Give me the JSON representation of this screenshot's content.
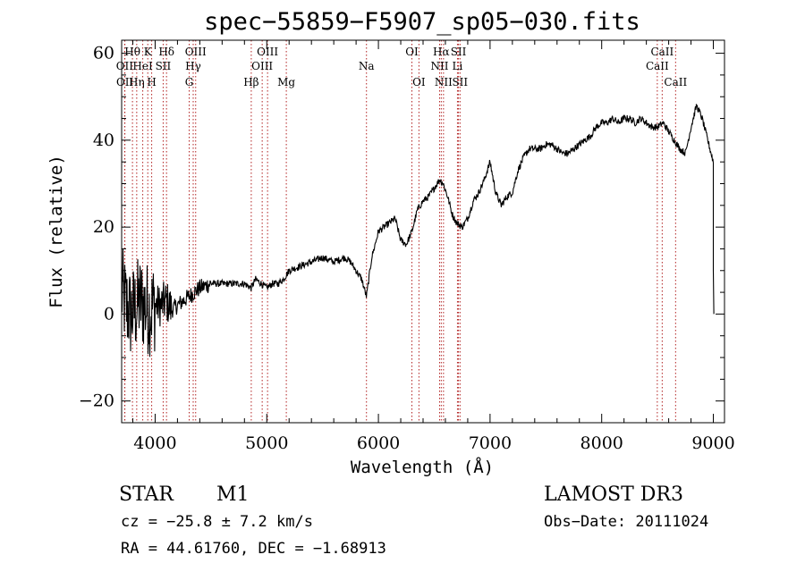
{
  "chart_data": {
    "type": "line",
    "title": "spec−55859−F5907_sp05−030.fits",
    "xlabel": "Wavelength (Å)",
    "ylabel": "Flux (relative)",
    "xlim": [
      3700,
      9100
    ],
    "ylim": [
      -25,
      63
    ],
    "x_major_ticks": [
      4000,
      5000,
      6000,
      7000,
      8000,
      9000
    ],
    "x_tick_labels": [
      "4000",
      "5000",
      "6000",
      "7000",
      "8000",
      "9000"
    ],
    "y_major_ticks": [
      -20,
      0,
      20,
      40,
      60
    ],
    "y_tick_labels": [
      "−20",
      "0",
      "20",
      "40",
      "60"
    ],
    "series": [
      {
        "name": "flux",
        "x": [
          3700,
          3740,
          3780,
          3820,
          3860,
          3900,
          3950,
          4000,
          4050,
          4100,
          4150,
          4200,
          4250,
          4300,
          4350,
          4400,
          4500,
          4600,
          4700,
          4800,
          4860,
          4900,
          4950,
          5000,
          5050,
          5100,
          5150,
          5200,
          5300,
          5400,
          5500,
          5600,
          5700,
          5750,
          5800,
          5850,
          5893,
          5940,
          6000,
          6050,
          6100,
          6150,
          6200,
          6250,
          6300,
          6350,
          6400,
          6450,
          6500,
          6550,
          6580,
          6620,
          6660,
          6700,
          6750,
          6800,
          6850,
          6900,
          6950,
          7000,
          7050,
          7100,
          7150,
          7200,
          7250,
          7300,
          7350,
          7400,
          7450,
          7500,
          7550,
          7600,
          7650,
          7700,
          7750,
          7800,
          7850,
          7900,
          7950,
          8000,
          8050,
          8100,
          8150,
          8200,
          8250,
          8300,
          8350,
          8400,
          8450,
          8500,
          8550,
          8600,
          8650,
          8700,
          8750,
          8800,
          8850,
          8900,
          8950,
          9000
        ],
        "y": [
          5,
          2,
          0,
          1,
          3,
          2,
          1,
          2,
          2,
          3,
          1,
          2,
          3,
          4,
          5,
          6,
          7,
          7,
          7,
          7,
          6,
          8,
          7,
          6,
          7,
          7,
          8,
          10,
          11,
          12,
          13,
          12,
          13,
          12,
          10,
          8,
          4,
          13,
          19,
          20,
          21,
          22,
          17,
          16,
          19,
          24,
          26,
          27,
          29,
          31,
          30,
          27,
          23,
          21,
          20,
          22,
          26,
          28,
          31,
          35,
          28,
          25,
          27,
          28,
          33,
          36,
          38,
          38,
          38,
          39,
          39,
          38,
          37,
          37,
          38,
          39,
          40,
          41,
          43,
          44,
          44,
          45,
          44,
          45,
          45,
          44,
          45,
          44,
          43,
          43,
          44,
          42,
          40,
          38,
          37,
          43,
          48,
          45,
          40,
          35
        ],
        "color": "#000000"
      }
    ],
    "spectral_lines": [
      {
        "label": "Hθ",
        "wavelength": 3797,
        "row": 0
      },
      {
        "label": "OII",
        "wavelength": 3727,
        "row": 1
      },
      {
        "label": "OII",
        "wavelength": 3729,
        "row": 2
      },
      {
        "label": "Hη",
        "wavelength": 3835,
        "row": 2
      },
      {
        "label": "HeI",
        "wavelength": 3889,
        "row": 1
      },
      {
        "label": "K",
        "wavelength": 3934,
        "row": 0
      },
      {
        "label": "SII",
        "wavelength": 4072,
        "row": 1
      },
      {
        "label": "H",
        "wavelength": 3969,
        "row": 2
      },
      {
        "label": "Hδ",
        "wavelength": 4102,
        "row": 0
      },
      {
        "label": "OIII",
        "wavelength": 4363,
        "row": 0
      },
      {
        "label": "Hγ",
        "wavelength": 4341,
        "row": 1
      },
      {
        "label": "G",
        "wavelength": 4305,
        "row": 2
      },
      {
        "label": "Hβ",
        "wavelength": 4861,
        "row": 2
      },
      {
        "label": "OIII",
        "wavelength": 5007,
        "row": 0
      },
      {
        "label": "OIII",
        "wavelength": 4959,
        "row": 1
      },
      {
        "label": "Mg",
        "wavelength": 5175,
        "row": 2
      },
      {
        "label": "Na",
        "wavelength": 5893,
        "row": 1
      },
      {
        "label": "OI",
        "wavelength": 6300,
        "row": 0
      },
      {
        "label": "OI",
        "wavelength": 6363,
        "row": 2
      },
      {
        "label": "Hα",
        "wavelength": 6563,
        "row": 0
      },
      {
        "label": "NII",
        "wavelength": 6548,
        "row": 1
      },
      {
        "label": "NII",
        "wavelength": 6583,
        "row": 2
      },
      {
        "label": "SII",
        "wavelength": 6717,
        "row": 0
      },
      {
        "label": "Li",
        "wavelength": 6708,
        "row": 1
      },
      {
        "label": "SII",
        "wavelength": 6731,
        "row": 2
      },
      {
        "label": "CaII",
        "wavelength": 8542,
        "row": 0
      },
      {
        "label": "CaII",
        "wavelength": 8498,
        "row": 1
      },
      {
        "label": "CaII",
        "wavelength": 8662,
        "row": 2
      }
    ],
    "grid": false,
    "legend": "none",
    "line_marker_color": "#b22222"
  },
  "info": {
    "object_class": "STAR",
    "subclass": "M1",
    "survey": "LAMOST DR3",
    "cz": "cz = −25.8 ± 7.2 km/s",
    "obs_date": "Obs−Date: 20111024",
    "coords": "RA =  44.61760, DEC =  −1.68913"
  }
}
